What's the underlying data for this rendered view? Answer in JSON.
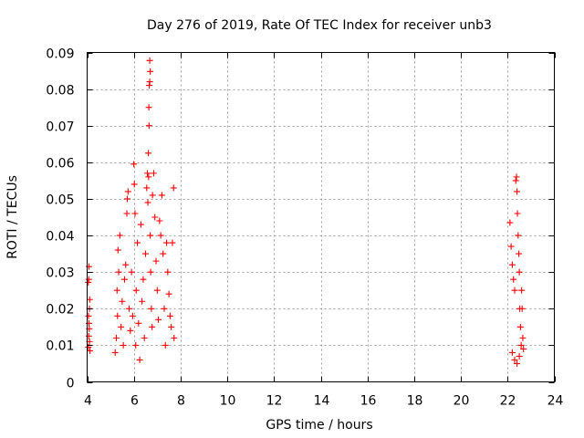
{
  "chart_data": {
    "type": "scatter",
    "title": "Day 276 of 2019, Rate Of TEC Index for receiver unb3",
    "xlabel": "GPS time / hours",
    "ylabel": "ROTI / TECUs",
    "xlim": [
      4,
      24
    ],
    "ylim": [
      0,
      0.09
    ],
    "xticks": [
      4,
      6,
      8,
      10,
      12,
      14,
      16,
      18,
      20,
      22,
      24
    ],
    "xtick_labels": [
      "4",
      "6",
      "8",
      "10",
      "12",
      "14",
      "16",
      "18",
      "20",
      "22",
      "24"
    ],
    "yticks": [
      0,
      0.01,
      0.02,
      0.03,
      0.04,
      0.05,
      0.06,
      0.07,
      0.08,
      0.09
    ],
    "ytick_labels": [
      "0",
      "0.01",
      "0.02",
      "0.03",
      "0.04",
      "0.05",
      "0.06",
      "0.07",
      "0.08",
      "0.09"
    ],
    "grid": true,
    "marker": "+",
    "color": "#ff0000",
    "series": [
      {
        "name": "ROTI",
        "points": [
          [
            4.05,
            0.0095
          ],
          [
            4.07,
            0.0125
          ],
          [
            4.08,
            0.016
          ],
          [
            4.1,
            0.02
          ],
          [
            4.05,
            0.0272
          ],
          [
            4.08,
            0.0315
          ],
          [
            4.1,
            0.011
          ],
          [
            4.12,
            0.0085
          ],
          [
            4.06,
            0.018
          ],
          [
            4.09,
            0.0145
          ],
          [
            4.11,
            0.0225
          ],
          [
            4.07,
            0.028
          ],
          [
            5.2,
            0.008
          ],
          [
            5.25,
            0.012
          ],
          [
            5.3,
            0.018
          ],
          [
            5.28,
            0.025
          ],
          [
            5.35,
            0.03
          ],
          [
            5.32,
            0.036
          ],
          [
            5.4,
            0.04
          ],
          [
            5.45,
            0.015
          ],
          [
            5.5,
            0.022
          ],
          [
            5.55,
            0.01
          ],
          [
            5.6,
            0.028
          ],
          [
            5.65,
            0.032
          ],
          [
            5.7,
            0.046
          ],
          [
            5.72,
            0.05
          ],
          [
            5.75,
            0.052
          ],
          [
            5.8,
            0.02
          ],
          [
            5.85,
            0.014
          ],
          [
            5.9,
            0.03
          ],
          [
            5.95,
            0.018
          ],
          [
            6.0,
            0.0595
          ],
          [
            6.02,
            0.054
          ],
          [
            6.05,
            0.046
          ],
          [
            6.08,
            0.01
          ],
          [
            6.1,
            0.025
          ],
          [
            6.15,
            0.038
          ],
          [
            6.2,
            0.016
          ],
          [
            6.25,
            0.006
          ],
          [
            6.3,
            0.043
          ],
          [
            6.35,
            0.022
          ],
          [
            6.4,
            0.028
          ],
          [
            6.45,
            0.012
          ],
          [
            6.5,
            0.035
          ],
          [
            6.55,
            0.053
          ],
          [
            6.58,
            0.057
          ],
          [
            6.6,
            0.049
          ],
          [
            6.62,
            0.0625
          ],
          [
            6.64,
            0.075
          ],
          [
            6.66,
            0.081
          ],
          [
            6.68,
            0.082
          ],
          [
            6.7,
            0.0848
          ],
          [
            6.68,
            0.0878
          ],
          [
            6.65,
            0.07
          ],
          [
            6.63,
            0.056
          ],
          [
            6.7,
            0.04
          ],
          [
            6.72,
            0.03
          ],
          [
            6.75,
            0.02
          ],
          [
            6.78,
            0.015
          ],
          [
            6.8,
            0.051
          ],
          [
            6.85,
            0.057
          ],
          [
            6.9,
            0.045
          ],
          [
            6.95,
            0.033
          ],
          [
            7.0,
            0.025
          ],
          [
            7.05,
            0.017
          ],
          [
            7.1,
            0.044
          ],
          [
            7.15,
            0.04
          ],
          [
            7.2,
            0.051
          ],
          [
            7.25,
            0.035
          ],
          [
            7.3,
            0.02
          ],
          [
            7.35,
            0.01
          ],
          [
            7.4,
            0.038
          ],
          [
            7.45,
            0.03
          ],
          [
            7.5,
            0.024
          ],
          [
            7.55,
            0.018
          ],
          [
            7.6,
            0.015
          ],
          [
            7.65,
            0.038
          ],
          [
            7.7,
            0.053
          ],
          [
            7.72,
            0.012
          ],
          [
            22.1,
            0.0435
          ],
          [
            22.15,
            0.037
          ],
          [
            22.2,
            0.032
          ],
          [
            22.25,
            0.028
          ],
          [
            22.3,
            0.025
          ],
          [
            22.35,
            0.055
          ],
          [
            22.38,
            0.056
          ],
          [
            22.4,
            0.052
          ],
          [
            22.42,
            0.046
          ],
          [
            22.45,
            0.04
          ],
          [
            22.48,
            0.035
          ],
          [
            22.5,
            0.03
          ],
          [
            22.52,
            0.02
          ],
          [
            22.55,
            0.015
          ],
          [
            22.58,
            0.01
          ],
          [
            22.6,
            0.025
          ],
          [
            22.62,
            0.02
          ],
          [
            22.65,
            0.012
          ],
          [
            22.68,
            0.009
          ],
          [
            22.2,
            0.008
          ],
          [
            22.3,
            0.006
          ],
          [
            22.4,
            0.005
          ],
          [
            22.5,
            0.007
          ]
        ]
      }
    ]
  }
}
